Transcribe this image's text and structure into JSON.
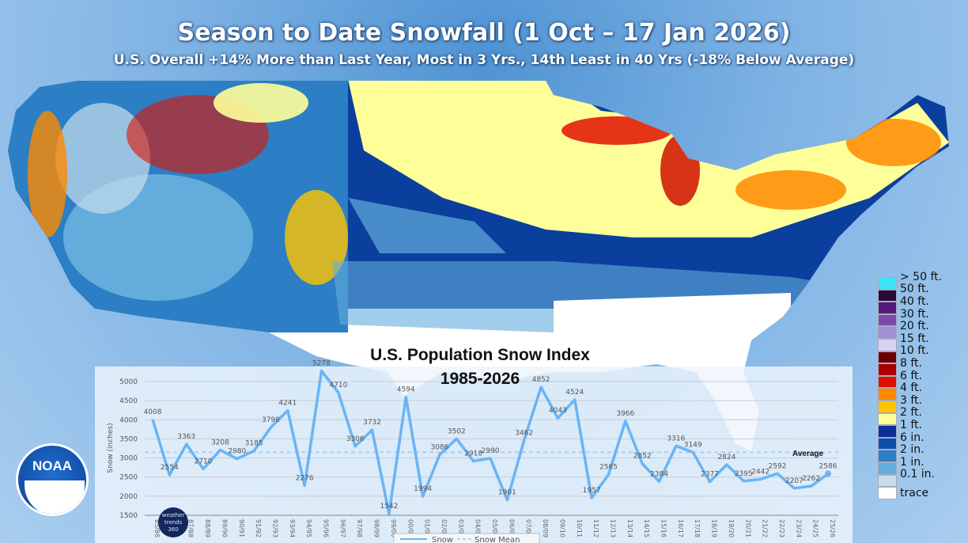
{
  "header": {
    "title": "Season to Date Snowfall (1 Oct – 17 Jan 2026)",
    "subtitle": "U.S. Overall +14% More than Last Year, Most in 3 Yrs., 14th Least in 40 Yrs (-18% Below Average)"
  },
  "map_legend": [
    {
      "label": "> 50 ft.",
      "color": "#3fe3f5"
    },
    {
      "label": "50 ft.",
      "color": "#2a0a3a"
    },
    {
      "label": "40 ft.",
      "color": "#541c78"
    },
    {
      "label": "30 ft.",
      "color": "#7b4aaa"
    },
    {
      "label": "20 ft.",
      "color": "#a08fd8"
    },
    {
      "label": "15 ft.",
      "color": "#d7d3f5"
    },
    {
      "label": "10 ft.",
      "color": "#6d0000"
    },
    {
      "label": "8 ft.",
      "color": "#a80000"
    },
    {
      "label": "6 ft.",
      "color": "#e01000"
    },
    {
      "label": "4 ft.",
      "color": "#ff8a00"
    },
    {
      "label": "3 ft.",
      "color": "#ffc400"
    },
    {
      "label": "2 ft.",
      "color": "#ffff9a"
    },
    {
      "label": "1 ft.",
      "color": "#0a2f9a"
    },
    {
      "label": "6 in.",
      "color": "#0b50a8"
    },
    {
      "label": "2 in.",
      "color": "#2c7fc4"
    },
    {
      "label": "1 in.",
      "color": "#63acdc"
    },
    {
      "label": "0.1 in.",
      "color": "#c6deec"
    },
    {
      "label": "trace",
      "color": "#ffffff"
    }
  ],
  "logos": {
    "noaa": "NOAA",
    "weathertrends": "weather trends 360"
  },
  "chart_data": {
    "type": "line",
    "title": "U.S. Population Snow Index",
    "subtitle": "1985-2026",
    "ylabel": "Snow (inches)",
    "ylim": [
      1500,
      5000
    ],
    "yticks": [
      1500,
      2000,
      2500,
      3000,
      3500,
      4000,
      4500,
      5000
    ],
    "grid": true,
    "legend_position": "bottom",
    "categories": [
      "85/86",
      "86/87",
      "87/88",
      "88/89",
      "89/90",
      "90/91",
      "91/92",
      "92/93",
      "93/94",
      "94/95",
      "95/96",
      "96/97",
      "97/98",
      "98/99",
      "99/00",
      "00/01",
      "01/02",
      "02/03",
      "03/04",
      "04/05",
      "05/06",
      "06/07",
      "07/08",
      "08/09",
      "09/10",
      "10/11",
      "11/12",
      "12/13",
      "13/14",
      "14/15",
      "15/16",
      "16/17",
      "17/18",
      "18/19",
      "19/20",
      "20/21",
      "21/22",
      "22/23",
      "23/24",
      "24/25",
      "25/26"
    ],
    "series": [
      {
        "name": "Snow",
        "color": "#6ab4f5",
        "values": [
          4008,
          2554,
          3363,
          2710,
          3208,
          2980,
          3185,
          3798,
          4241,
          2276,
          5278,
          4710,
          3306,
          3732,
          1542,
          4594,
          1994,
          3086,
          3502,
          2918,
          2990,
          1901,
          3462,
          4852,
          4043,
          4524,
          1957,
          2565,
          3966,
          2852,
          2384,
          3316,
          3149,
          2377,
          2824,
          2395,
          2442,
          2592,
          2207,
          2262,
          2586
        ]
      },
      {
        "name": "Snow Mean",
        "color": "#9cc8f0",
        "value": 3150,
        "annotation": "Average"
      }
    ]
  }
}
